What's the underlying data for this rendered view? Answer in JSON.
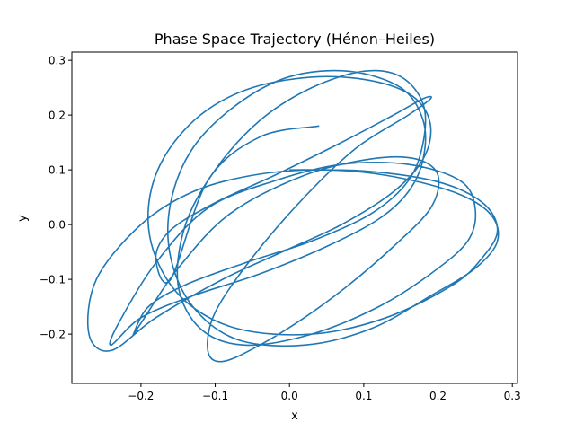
{
  "chart_data": {
    "type": "line",
    "title": "Phase Space Trajectory (Hénon–Heiles)",
    "xlabel": "x",
    "ylabel": "y",
    "xlim": [
      -0.293,
      0.307
    ],
    "ylim": [
      -0.29,
      0.315
    ],
    "xticks": [
      -0.2,
      -0.1,
      0.0,
      0.1,
      0.2,
      0.3
    ],
    "xtick_labels": [
      "−0.2",
      "−0.1",
      "0.0",
      "0.1",
      "0.2",
      "0.3"
    ],
    "yticks": [
      -0.2,
      -0.1,
      0.0,
      0.1,
      0.2,
      0.3
    ],
    "ytick_labels": [
      "−0.2",
      "−0.1",
      "0.0",
      "0.1",
      "0.2",
      "0.3"
    ],
    "grid": false,
    "legend": "none",
    "line_color": "#1f77b4",
    "series": [
      {
        "x": [
          0.0,
          0.1,
          0.2,
          0.26,
          0.28,
          0.26,
          0.22,
          0.13,
          0.03,
          -0.07,
          -0.14,
          -0.18,
          -0.19,
          -0.17,
          -0.12,
          -0.05,
          0.04,
          0.12,
          0.17,
          0.19,
          0.18,
          0.14,
          0.07,
          -0.01,
          -0.09,
          -0.18,
          -0.24,
          -0.27,
          -0.26,
          -0.2,
          -0.13,
          -0.05,
          0.04,
          0.13,
          0.22,
          0.27,
          0.28,
          0.25,
          0.19,
          0.11,
          0.02,
          -0.07,
          -0.13,
          -0.16,
          -0.16,
          -0.13,
          -0.07,
          0.0,
          0.08,
          0.15,
          0.18,
          0.18,
          0.16,
          0.12,
          0.05,
          -0.04,
          -0.13,
          -0.2,
          -0.24,
          -0.23,
          -0.18,
          -0.11,
          -0.02,
          0.07,
          0.16,
          0.23,
          0.25,
          0.24,
          0.19,
          0.12,
          0.03,
          -0.06,
          -0.12,
          -0.15,
          -0.14,
          -0.1,
          -0.04,
          0.03,
          0.1,
          0.15,
          0.18,
          0.18,
          0.16,
          0.11,
          0.03,
          -0.06,
          -0.14,
          -0.19,
          -0.21,
          -0.2,
          -0.15,
          -0.08,
          0.02,
          0.11,
          0.17,
          0.2,
          0.19,
          0.14,
          0.08,
          0.02,
          -0.04,
          -0.09,
          -0.11,
          -0.1,
          -0.05,
          0.02,
          0.09,
          0.16,
          0.19,
          0.18,
          0.14,
          0.07,
          -0.02,
          -0.1,
          -0.16,
          -0.18,
          -0.16,
          -0.11,
          -0.04,
          0.04
        ],
        "y": [
          0.1,
          0.098,
          0.078,
          0.04,
          -0.01,
          -0.06,
          -0.11,
          -0.17,
          -0.2,
          -0.19,
          -0.14,
          -0.06,
          0.03,
          0.12,
          0.2,
          0.25,
          0.27,
          0.26,
          0.23,
          0.18,
          0.12,
          0.06,
          0.0,
          -0.05,
          -0.1,
          -0.17,
          -0.23,
          -0.2,
          -0.1,
          0.0,
          0.06,
          0.09,
          0.1,
          0.09,
          0.06,
          0.02,
          -0.03,
          -0.08,
          -0.13,
          -0.19,
          -0.22,
          -0.21,
          -0.15,
          -0.06,
          0.04,
          0.14,
          0.22,
          0.27,
          0.28,
          0.25,
          0.19,
          0.12,
          0.06,
          0.01,
          -0.04,
          -0.09,
          -0.13,
          -0.17,
          -0.22,
          -0.18,
          -0.07,
          0.03,
          0.08,
          0.11,
          0.11,
          0.08,
          0.03,
          -0.03,
          -0.09,
          -0.15,
          -0.2,
          -0.22,
          -0.19,
          -0.11,
          0.0,
          0.1,
          0.19,
          0.25,
          0.28,
          0.27,
          0.22,
          0.15,
          0.08,
          0.02,
          -0.03,
          -0.07,
          -0.11,
          -0.15,
          -0.2,
          -0.18,
          -0.08,
          0.02,
          0.09,
          0.12,
          0.12,
          0.09,
          0.03,
          -0.04,
          -0.11,
          -0.17,
          -0.22,
          -0.25,
          -0.23,
          -0.16,
          -0.06,
          0.05,
          0.14,
          0.2,
          0.23,
          0.23,
          0.2,
          0.15,
          0.09,
          0.04,
          -0.01,
          -0.06,
          -0.1,
          0.08,
          0.16,
          0.18
        ]
      }
    ]
  }
}
